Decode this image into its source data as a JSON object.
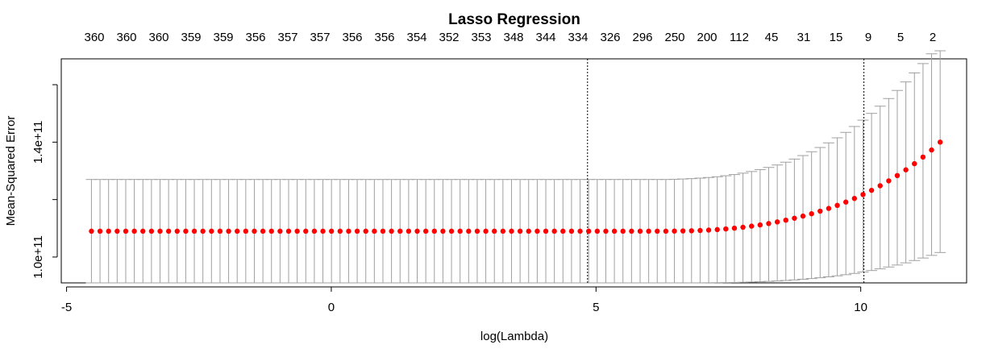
{
  "chart_data": {
    "type": "scatter",
    "title": "Lasso Regression",
    "xlabel": "log(Lambda)",
    "ylabel": "Mean-Squared Error",
    "xlim": [
      -5.1,
      12.0
    ],
    "ylim": [
      91000000000.0,
      169000000000.0
    ],
    "x_ticks": [
      -5,
      0,
      5,
      10
    ],
    "x_tick_labels": [
      "-5",
      "0",
      "5",
      "10"
    ],
    "y_ticks": [
      100000000000.0,
      120000000000.0,
      140000000000.0,
      160000000000.0
    ],
    "y_tick_labels": [
      "1.0e+11",
      "",
      "1.4e+11",
      ""
    ],
    "top_axis_labels": [
      "360",
      "360",
      "360",
      "359",
      "359",
      "356",
      "357",
      "357",
      "356",
      "356",
      "354",
      "352",
      "353",
      "348",
      "344",
      "334",
      "326",
      "296",
      "250",
      "200",
      "112",
      "45",
      "31",
      "15",
      "9",
      "5",
      "2"
    ],
    "top_axis_x": [
      -4.53,
      -4.0,
      -3.47,
      -2.95,
      -2.42,
      -1.9,
      -1.37,
      -0.84,
      -0.32,
      0.21,
      0.73,
      1.26,
      1.79,
      2.31,
      2.84,
      3.36,
      3.89,
      4.42,
      4.94,
      5.47,
      6.0,
      6.52,
      6.95,
      7.45,
      7.95,
      8.45,
      9.0
    ],
    "vlines": [
      4.84,
      10.06
    ],
    "points_x_start": -4.53,
    "points_x_end": 11.5,
    "points_count": 100,
    "points_y": [
      109000000000.0,
      109000000000.0,
      109000000000.0,
      109000000000.0,
      109000000000.0,
      109000000000.0,
      109000000000.0,
      109000000000.0,
      109000000000.0,
      109000000000.0,
      109000000000.0,
      109000000000.0,
      109000000000.0,
      109000000000.0,
      109000000000.0,
      109000000000.0,
      109000000000.0,
      109000000000.0,
      109000000000.0,
      109000000000.0,
      109000000000.0,
      109000000000.0,
      109000000000.0,
      109000000000.0,
      109000000000.0,
      109000000000.0,
      109000000000.0,
      109000000000.0,
      109000000000.0,
      109000000000.0,
      109000000000.0,
      109000000000.0,
      109000000000.0,
      109000000000.0,
      109000000000.0,
      109000000000.0,
      109000000000.0,
      109000000000.0,
      109000000000.0,
      109000000000.0,
      109000000000.0,
      109000000000.0,
      109000000000.0,
      109000000000.0,
      109000000000.0,
      109000000000.0,
      109000000000.0,
      109000000000.0,
      109000000000.0,
      109000000000.0,
      109000000000.0,
      109000000000.0,
      109000000000.0,
      109000000000.0,
      109000000000.0,
      109000000000.0,
      109000000000.0,
      109000000000.0,
      109000000000.0,
      109000000000.0,
      109000000000.0,
      109000000000.0,
      109000000000.0,
      109000000000.0,
      109000000000.0,
      109000000000.0,
      109000000000.0,
      109000000000.0,
      109030000000.0,
      109080000000.0,
      109150000000.0,
      109250000000.0,
      109380000000.0,
      109560000000.0,
      109780000000.0,
      110050000000.0,
      110370000000.0,
      110750000000.0,
      111180000000.0,
      111670000000.0,
      112220000000.0,
      112830000000.0,
      113510000000.0,
      114250000000.0,
      115070000000.0,
      115960000000.0,
      116930000000.0,
      117990000000.0,
      119140000000.0,
      120390000000.0,
      121750000000.0,
      123220000000.0,
      124810000000.0,
      126520000000.0,
      128370000000.0,
      130360000000.0,
      132500000000.0,
      134800000000.0,
      137270000000.0,
      140000000000.0
    ],
    "upper_y": [
      127000000000.0,
      127000000000.0,
      127000000000.0,
      127000000000.0,
      127000000000.0,
      127000000000.0,
      127000000000.0,
      127000000000.0,
      127000000000.0,
      127000000000.0,
      127000000000.0,
      127000000000.0,
      127000000000.0,
      127000000000.0,
      127000000000.0,
      127000000000.0,
      127000000000.0,
      127000000000.0,
      127000000000.0,
      127000000000.0,
      127000000000.0,
      127000000000.0,
      127000000000.0,
      127000000000.0,
      127000000000.0,
      127000000000.0,
      127000000000.0,
      127000000000.0,
      127000000000.0,
      127000000000.0,
      127000000000.0,
      127000000000.0,
      127000000000.0,
      127000000000.0,
      127000000000.0,
      127000000000.0,
      127000000000.0,
      127000000000.0,
      127000000000.0,
      127000000000.0,
      127000000000.0,
      127000000000.0,
      127000000000.0,
      127000000000.0,
      127000000000.0,
      127000000000.0,
      127000000000.0,
      127000000000.0,
      127000000000.0,
      127000000000.0,
      127000000000.0,
      127000000000.0,
      127000000000.0,
      127000000000.0,
      127000000000.0,
      127000000000.0,
      127000000000.0,
      127000000000.0,
      127000000000.0,
      127000000000.0,
      127000000000.0,
      127000000000.0,
      127000000000.0,
      127000000000.0,
      127000000000.0,
      127000000000.0,
      127000000000.0,
      127000000000.0,
      127070000000.0,
      127170000000.0,
      127300000000.0,
      127470000000.0,
      127690000000.0,
      127960000000.0,
      128300000000.0,
      128710000000.0,
      129200000000.0,
      129770000000.0,
      130430000000.0,
      131190000000.0,
      132050000000.0,
      133020000000.0,
      134110000000.0,
      135320000000.0,
      136660000000.0,
      138130000000.0,
      139740000000.0,
      141500000000.0,
      143400000000.0,
      145450000000.0,
      147650000000.0,
      150010000000.0,
      152520000000.0,
      155180000000.0,
      158000000000.0,
      160970000000.0,
      164090000000.0,
      167350000000.0,
      170750000000.0,
      174290000000.0
    ],
    "lower_y": [
      91000000000.0,
      91000000000.0,
      91000000000.0,
      91000000000.0,
      91000000000.0,
      91000000000.0,
      91000000000.0,
      91000000000.0,
      91000000000.0,
      91000000000.0,
      91000000000.0,
      91000000000.0,
      91000000000.0,
      91000000000.0,
      91000000000.0,
      91000000000.0,
      91000000000.0,
      91000000000.0,
      91000000000.0,
      91000000000.0,
      91000000000.0,
      91000000000.0,
      91000000000.0,
      91000000000.0,
      91000000000.0,
      91000000000.0,
      91000000000.0,
      91000000000.0,
      91000000000.0,
      91000000000.0,
      91000000000.0,
      91000000000.0,
      91000000000.0,
      91000000000.0,
      91000000000.0,
      91000000000.0,
      91000000000.0,
      91000000000.0,
      91000000000.0,
      91000000000.0,
      91000000000.0,
      91000000000.0,
      91000000000.0,
      91000000000.0,
      91000000000.0,
      91000000000.0,
      91000000000.0,
      91000000000.0,
      91000000000.0,
      91000000000.0,
      91000000000.0,
      91000000000.0,
      91000000000.0,
      91000000000.0,
      91000000000.0,
      91000000000.0,
      91000000000.0,
      91000000000.0,
      91000000000.0,
      91000000000.0,
      91000000000.0,
      91000000000.0,
      91000000000.0,
      91000000000.0,
      91000000000.0,
      91000000000.0,
      91000000000.0,
      91000000000.0,
      91000000000.0,
      90995000000.0,
      90997000000.0,
      91006000000.0,
      91024000000.0,
      91051000000.0,
      91091000000.0,
      91144000000.0,
      91212000000.0,
      91298000000.0,
      91402000000.0,
      91526000000.0,
      91672000000.0,
      91841000000.0,
      92035000000.0,
      92256000000.0,
      92506000000.0,
      92788000000.0,
      93105000000.0,
      93459000000.0,
      93852000000.0,
      94288000000.0,
      94770000000.0,
      95301000000.0,
      95884000000.0,
      96521000000.0,
      97215000000.0,
      97968000000.0,
      98782000000.0,
      99659000000.0,
      100580000000.0,
      101570000000.0
    ],
    "grid": false,
    "colors": {
      "points": "#ff0000",
      "errorbars": "#a0a0a0",
      "axes": "#000000",
      "vlines": "#000000"
    }
  }
}
